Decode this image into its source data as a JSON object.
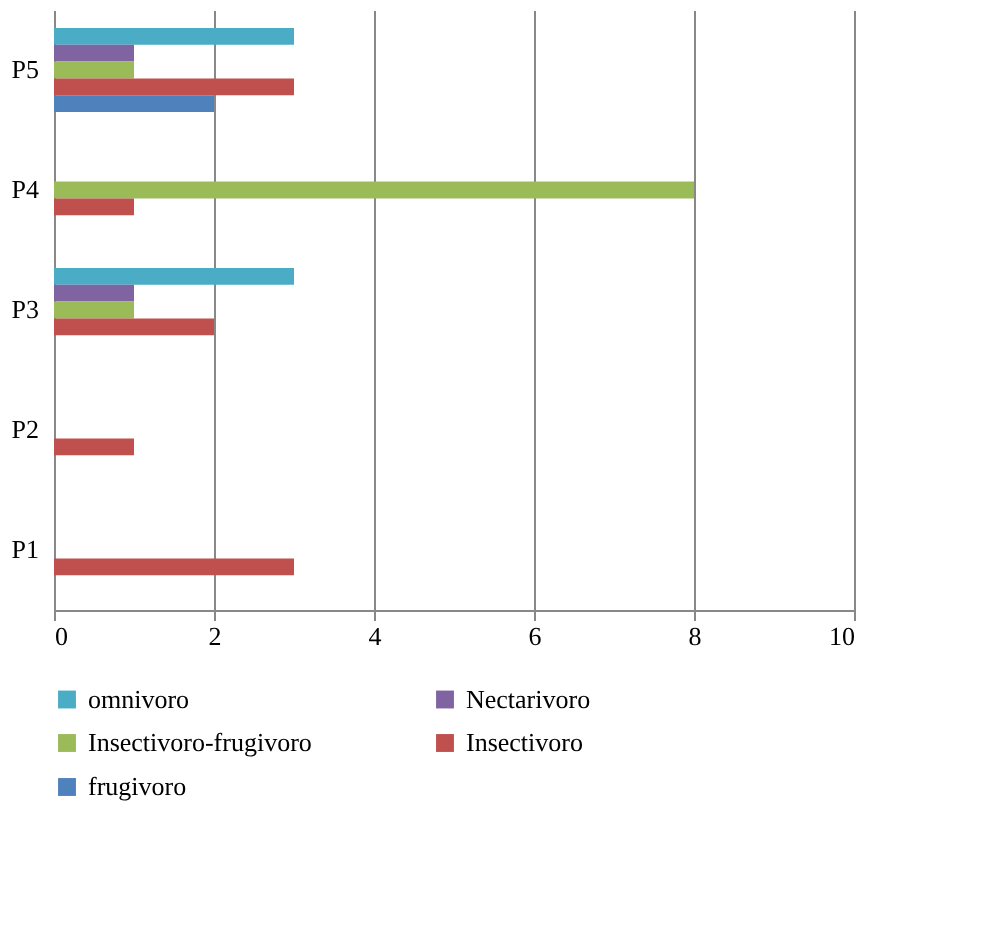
{
  "chart_data": {
    "type": "bar",
    "orientation": "horizontal",
    "categories": [
      "P5",
      "P4",
      "P3",
      "P2",
      "P1"
    ],
    "series": [
      {
        "name": "omnivoro",
        "color": "#4bacc6",
        "values": [
          3,
          null,
          3,
          null,
          null
        ]
      },
      {
        "name": "Nectarivoro",
        "color": "#8064a2",
        "values": [
          1,
          null,
          1,
          null,
          null
        ]
      },
      {
        "name": "Insectivoro-frugivoro",
        "color": "#9bbb59",
        "values": [
          1,
          8,
          1,
          null,
          null
        ]
      },
      {
        "name": "Insectivoro",
        "color": "#c0504d",
        "values": [
          3,
          1,
          2,
          1,
          3
        ]
      },
      {
        "name": "frugivoro",
        "color": "#4f81bd",
        "values": [
          2,
          null,
          null,
          null,
          null
        ]
      }
    ],
    "xlim": [
      0,
      10
    ],
    "xticks": [
      0,
      2,
      4,
      6,
      8,
      10
    ],
    "grid": "x",
    "legend": "bottom"
  }
}
